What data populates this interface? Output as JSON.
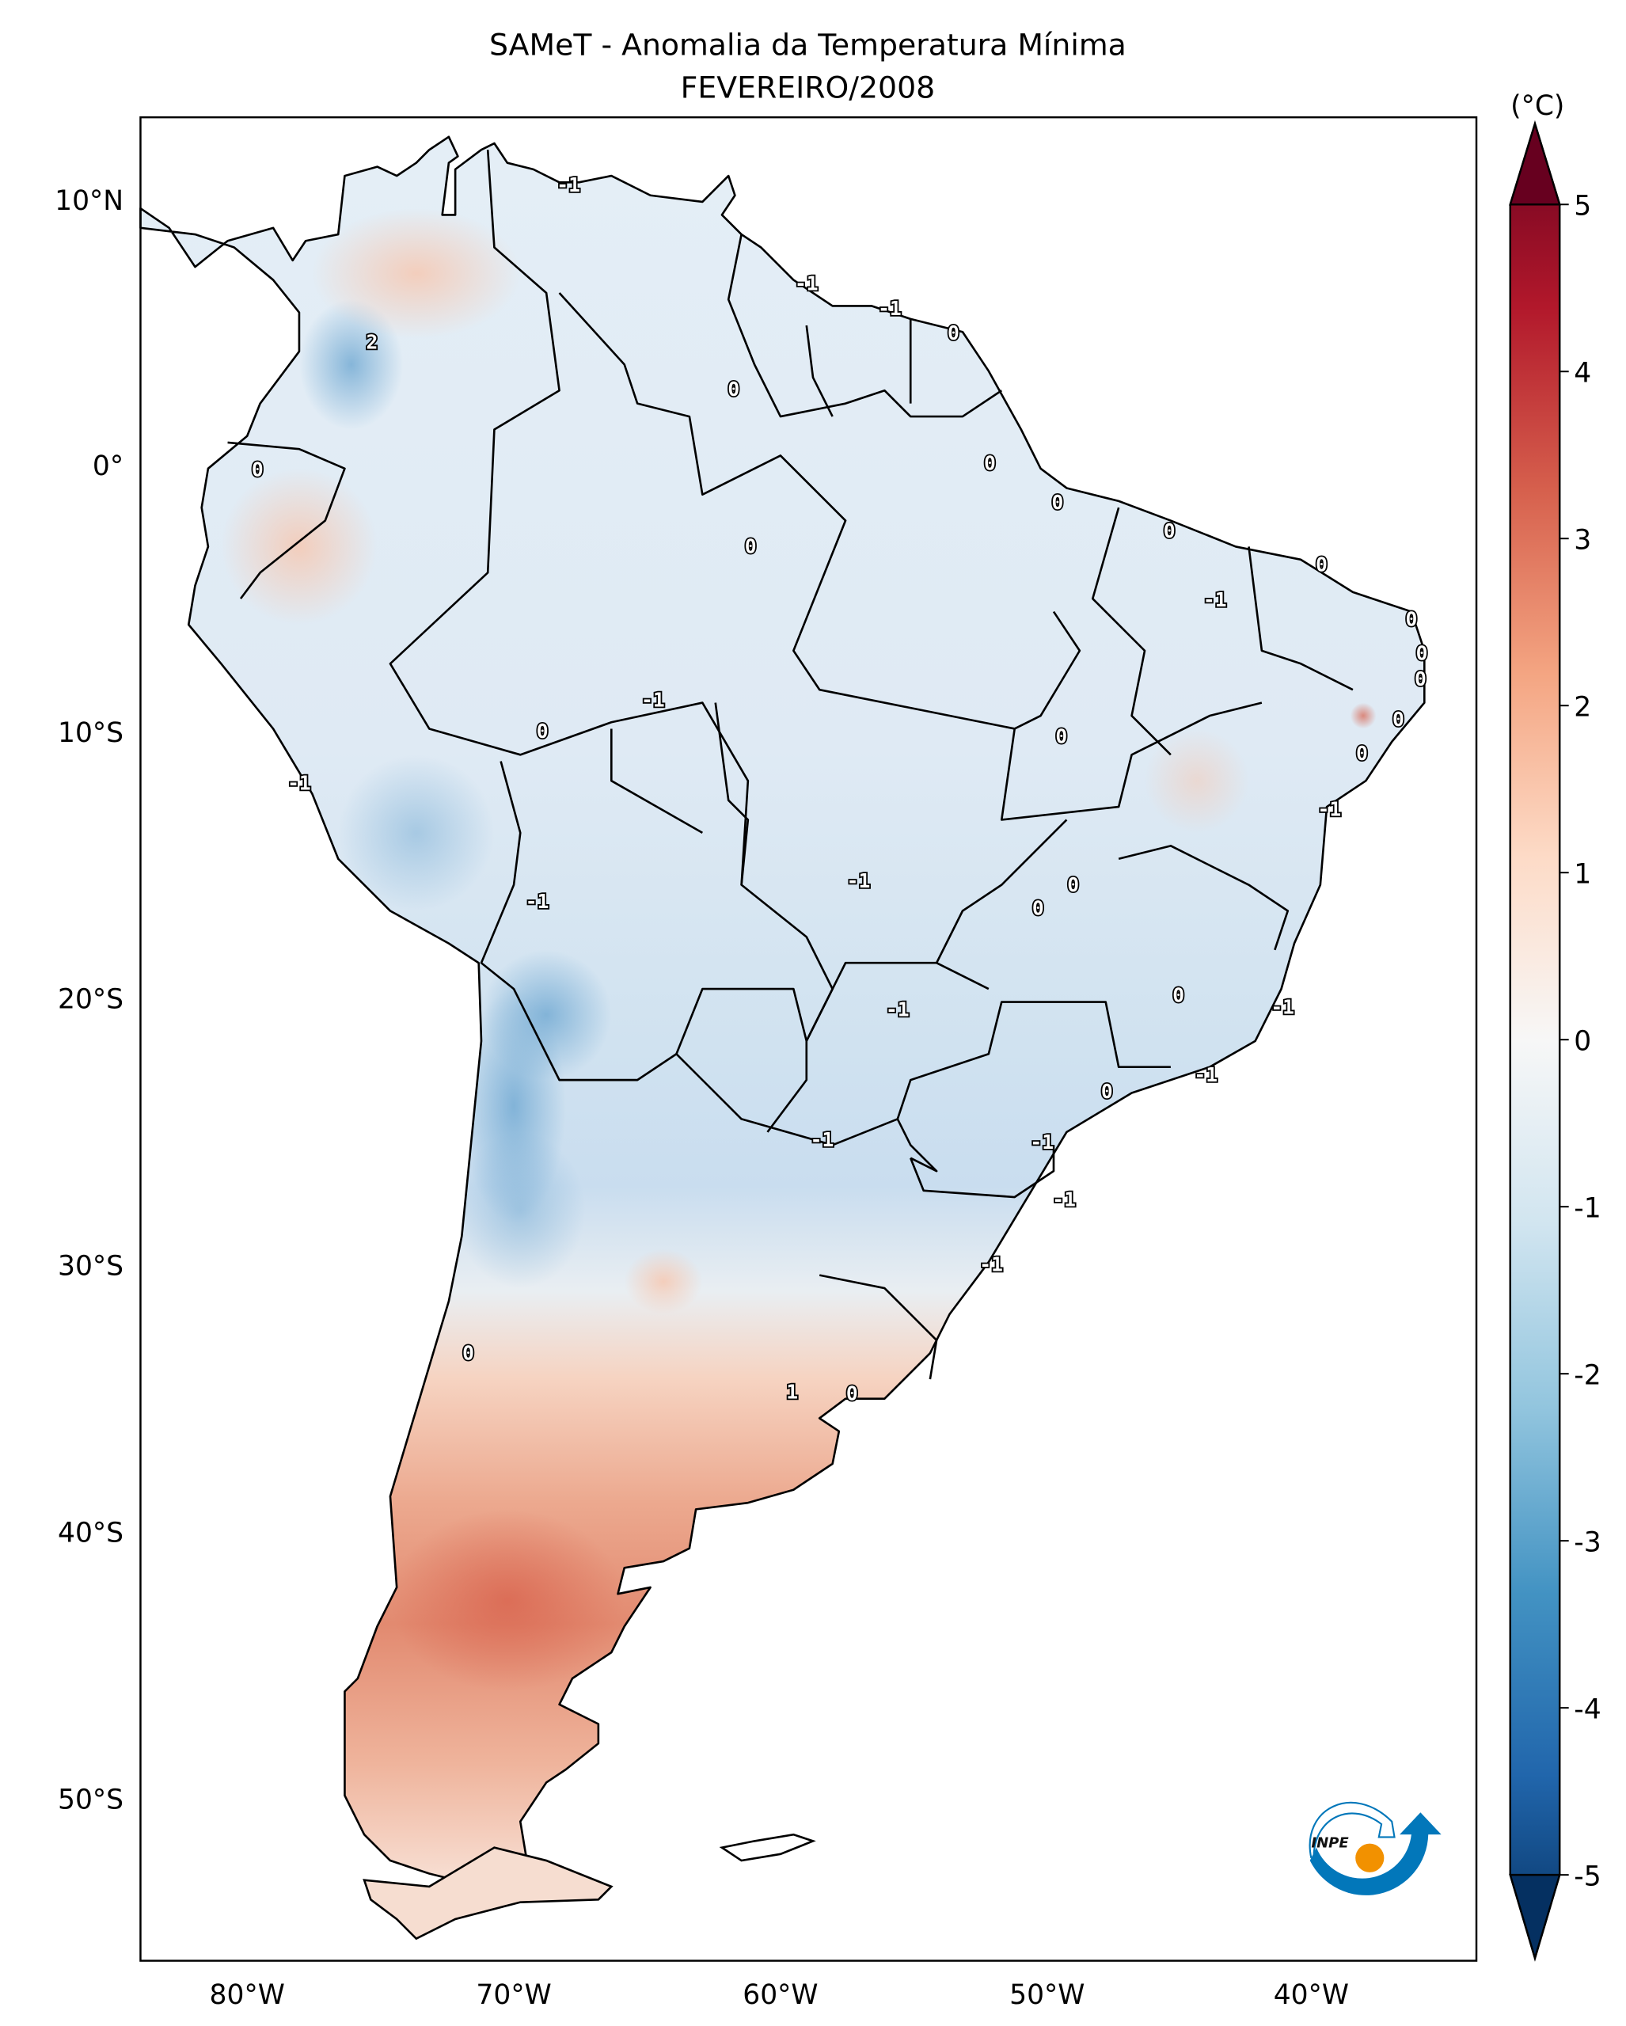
{
  "title": {
    "line1": "SAMeT - Anomalia da Temperatura Mínima",
    "line2": "FEVEREIRO/2008"
  },
  "map": {
    "lat_ticks": [
      "10°N",
      "0°",
      "10°S",
      "20°S",
      "30°S",
      "40°S",
      "50°S"
    ],
    "lon_ticks": [
      "80°W",
      "70°W",
      "60°W",
      "50°W",
      "40°W"
    ],
    "contour_labels": [
      "-1",
      "-1",
      "-1",
      "0",
      "2",
      "0",
      "0",
      "0",
      "0",
      "0",
      "0",
      "0",
      "-1",
      "0",
      "0",
      "0",
      "-1",
      "0",
      "0",
      "0",
      "0",
      "-1",
      "-1",
      "-1",
      "0",
      "0",
      "-1",
      "0",
      "-1",
      "-1",
      "-1",
      "0",
      "-1",
      "-1",
      "-1",
      "-1",
      "0",
      "1",
      "0"
    ]
  },
  "colorbar": {
    "unit": "(°C)",
    "ticks": [
      "5",
      "4",
      "3",
      "2",
      "1",
      "0",
      "-1",
      "-2",
      "-3",
      "-4",
      "-5"
    ],
    "range": [
      -5,
      5
    ],
    "colormap": "RdBu_r",
    "colors": {
      "max": "#67001f",
      "mid": "#f7f7f7",
      "min": "#053061"
    }
  },
  "logo": {
    "text": "INPE"
  }
}
